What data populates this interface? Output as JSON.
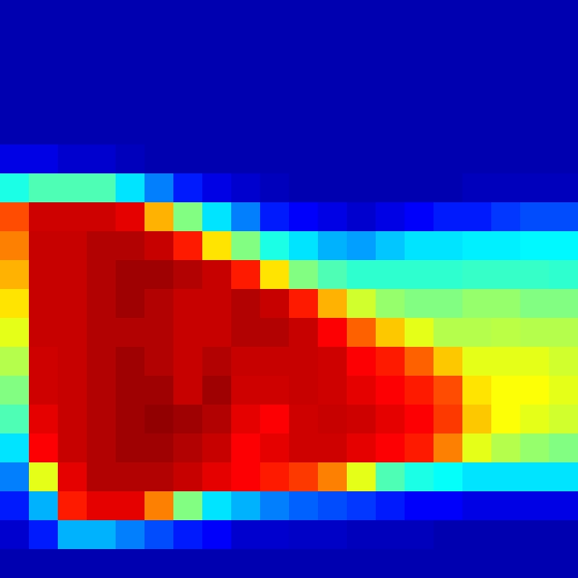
{
  "chart_data": {
    "type": "heatmap",
    "tick_labels": false,
    "zlim": [
      0,
      1
    ],
    "cells": [
      [
        0.05,
        0.05,
        0.05,
        0.05,
        0.05,
        0.05,
        0.05,
        0.05,
        0.05,
        0.05,
        0.05,
        0.05,
        0.05,
        0.05,
        0.05,
        0.05,
        0.05,
        0.05,
        0.05,
        0.05
      ],
      [
        0.05,
        0.05,
        0.05,
        0.05,
        0.05,
        0.05,
        0.05,
        0.05,
        0.05,
        0.05,
        0.05,
        0.05,
        0.05,
        0.05,
        0.05,
        0.05,
        0.05,
        0.05,
        0.05,
        0.05
      ],
      [
        0.05,
        0.05,
        0.05,
        0.05,
        0.05,
        0.05,
        0.05,
        0.05,
        0.05,
        0.05,
        0.05,
        0.05,
        0.05,
        0.05,
        0.05,
        0.05,
        0.05,
        0.05,
        0.05,
        0.05
      ],
      [
        0.05,
        0.05,
        0.05,
        0.05,
        0.05,
        0.05,
        0.05,
        0.05,
        0.05,
        0.05,
        0.05,
        0.05,
        0.05,
        0.05,
        0.05,
        0.05,
        0.05,
        0.05,
        0.05,
        0.05
      ],
      [
        0.05,
        0.05,
        0.05,
        0.05,
        0.05,
        0.05,
        0.05,
        0.05,
        0.05,
        0.05,
        0.05,
        0.05,
        0.05,
        0.05,
        0.05,
        0.05,
        0.05,
        0.05,
        0.05,
        0.05
      ],
      [
        0.1,
        0.1,
        0.08,
        0.08,
        0.06,
        0.05,
        0.05,
        0.05,
        0.05,
        0.05,
        0.05,
        0.05,
        0.05,
        0.05,
        0.05,
        0.05,
        0.05,
        0.05,
        0.05,
        0.05
      ],
      [
        0.4,
        0.45,
        0.45,
        0.45,
        0.35,
        0.25,
        0.15,
        0.1,
        0.08,
        0.06,
        0.05,
        0.05,
        0.05,
        0.05,
        0.05,
        0.05,
        0.06,
        0.06,
        0.06,
        0.06
      ],
      [
        0.8,
        0.92,
        0.92,
        0.92,
        0.9,
        0.7,
        0.5,
        0.35,
        0.25,
        0.15,
        0.12,
        0.1,
        0.08,
        0.1,
        0.12,
        0.15,
        0.15,
        0.18,
        0.2,
        0.2
      ],
      [
        0.75,
        0.93,
        0.93,
        0.95,
        0.95,
        0.93,
        0.85,
        0.65,
        0.5,
        0.4,
        0.35,
        0.3,
        0.28,
        0.32,
        0.35,
        0.35,
        0.36,
        0.36,
        0.37,
        0.37
      ],
      [
        0.7,
        0.93,
        0.93,
        0.95,
        0.97,
        0.97,
        0.95,
        0.93,
        0.85,
        0.65,
        0.5,
        0.45,
        0.42,
        0.42,
        0.42,
        0.42,
        0.43,
        0.43,
        0.43,
        0.42
      ],
      [
        0.65,
        0.93,
        0.93,
        0.95,
        0.97,
        0.95,
        0.93,
        0.93,
        0.95,
        0.93,
        0.85,
        0.7,
        0.58,
        0.52,
        0.5,
        0.5,
        0.52,
        0.52,
        0.5,
        0.5
      ],
      [
        0.6,
        0.93,
        0.93,
        0.95,
        0.95,
        0.95,
        0.93,
        0.93,
        0.95,
        0.95,
        0.93,
        0.88,
        0.78,
        0.68,
        0.6,
        0.55,
        0.55,
        0.56,
        0.55,
        0.55
      ],
      [
        0.55,
        0.92,
        0.93,
        0.95,
        0.97,
        0.95,
        0.93,
        0.95,
        0.93,
        0.93,
        0.93,
        0.92,
        0.88,
        0.85,
        0.78,
        0.68,
        0.6,
        0.6,
        0.6,
        0.58
      ],
      [
        0.5,
        0.92,
        0.93,
        0.95,
        0.97,
        0.97,
        0.93,
        0.97,
        0.92,
        0.92,
        0.93,
        0.92,
        0.9,
        0.88,
        0.85,
        0.8,
        0.65,
        0.62,
        0.62,
        0.6
      ],
      [
        0.45,
        0.9,
        0.93,
        0.95,
        0.97,
        0.98,
        0.97,
        0.95,
        0.9,
        0.88,
        0.92,
        0.93,
        0.92,
        0.9,
        0.88,
        0.82,
        0.68,
        0.62,
        0.6,
        0.58
      ],
      [
        0.35,
        0.88,
        0.93,
        0.95,
        0.97,
        0.97,
        0.95,
        0.93,
        0.88,
        0.9,
        0.92,
        0.92,
        0.9,
        0.88,
        0.85,
        0.75,
        0.6,
        0.55,
        0.52,
        0.5
      ],
      [
        0.25,
        0.6,
        0.9,
        0.95,
        0.95,
        0.95,
        0.93,
        0.9,
        0.88,
        0.85,
        0.82,
        0.75,
        0.6,
        0.45,
        0.4,
        0.38,
        0.35,
        0.35,
        0.35,
        0.35
      ],
      [
        0.15,
        0.3,
        0.85,
        0.9,
        0.9,
        0.75,
        0.5,
        0.35,
        0.3,
        0.25,
        0.22,
        0.2,
        0.18,
        0.15,
        0.12,
        0.12,
        0.1,
        0.1,
        0.1,
        0.1
      ],
      [
        0.08,
        0.15,
        0.3,
        0.3,
        0.25,
        0.2,
        0.15,
        0.12,
        0.08,
        0.08,
        0.07,
        0.07,
        0.06,
        0.06,
        0.06,
        0.05,
        0.05,
        0.05,
        0.05,
        0.05
      ],
      [
        0.05,
        0.05,
        0.05,
        0.05,
        0.05,
        0.05,
        0.05,
        0.05,
        0.05,
        0.05,
        0.05,
        0.05,
        0.05,
        0.05,
        0.05,
        0.05,
        0.05,
        0.05,
        0.05,
        0.05
      ]
    ]
  }
}
